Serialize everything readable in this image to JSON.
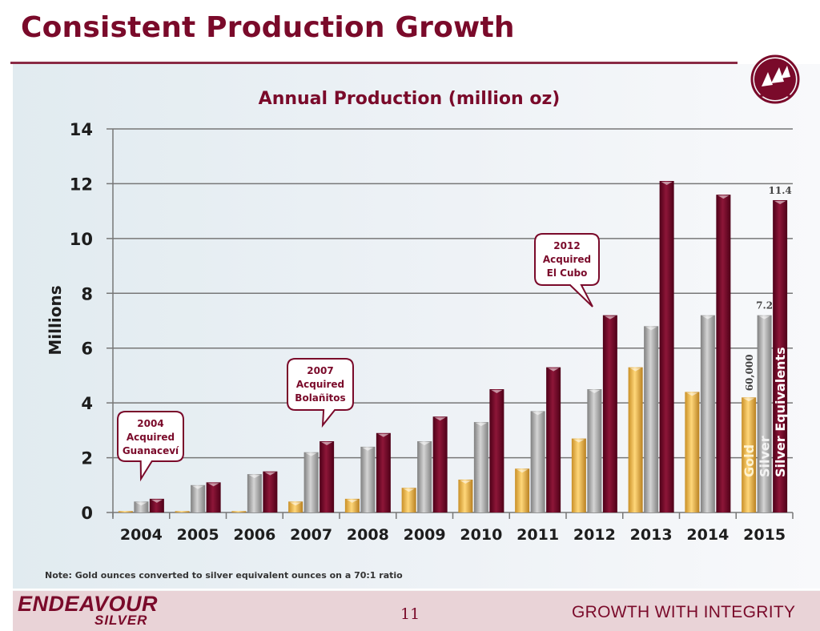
{
  "slide": {
    "title": "Consistent Production Growth",
    "note": "Note: Gold ounces converted to silver equivalent ounces on a 70:1 ratio",
    "page_number": "11",
    "brand_line1": "ENDEAVOUR",
    "brand_line2": "SILVER",
    "tagline": "GROWTH WITH INTEGRITY",
    "logo_icon": "sailing-ships-logo-icon"
  },
  "colors": {
    "brand": "#7a0a2a",
    "gold": "#f2b94a",
    "silver": "#a8a8a8",
    "silver_equivalents": "#7d0a2c",
    "grid": "#777777"
  },
  "chart_data": {
    "type": "bar",
    "title": "Annual Production (million oz)",
    "xlabel": "",
    "ylabel": "Millions",
    "ylim": [
      0,
      14
    ],
    "yticks": [
      0,
      2,
      4,
      6,
      8,
      10,
      12,
      14
    ],
    "grid": true,
    "categories": [
      "2004",
      "2005",
      "2006",
      "2007",
      "2008",
      "2009",
      "2010",
      "2011",
      "2012",
      "2013",
      "2014",
      "2015"
    ],
    "series": [
      {
        "name": "Gold",
        "values": [
          0.05,
          0.05,
          0.05,
          0.4,
          0.5,
          0.9,
          1.2,
          1.6,
          2.7,
          5.3,
          4.4,
          4.2
        ]
      },
      {
        "name": "Silver",
        "values": [
          0.4,
          1.0,
          1.4,
          2.2,
          2.4,
          2.6,
          3.3,
          3.7,
          4.5,
          6.8,
          7.2,
          7.2
        ]
      },
      {
        "name": "Silver Equivalents",
        "values": [
          0.5,
          1.1,
          1.5,
          2.6,
          2.9,
          3.5,
          4.5,
          5.3,
          7.2,
          12.1,
          11.6,
          11.4
        ]
      }
    ],
    "legend": "inline on 2015 bars (rotated labels)",
    "data_labels": [
      {
        "category": "2015",
        "series": "Silver Equivalents",
        "text": "11.4"
      },
      {
        "category": "2015",
        "series": "Silver",
        "text": "7.2"
      },
      {
        "category": "2015",
        "series": "Gold",
        "text": "60,000",
        "rotated": true
      }
    ],
    "annotations": [
      {
        "category": "2004",
        "lines": [
          "2004",
          "Acquired",
          "Guanaceví"
        ]
      },
      {
        "category": "2007",
        "lines": [
          "2007",
          "Acquired",
          "Bolañitos"
        ]
      },
      {
        "category": "2012",
        "lines": [
          "2012",
          "Acquired",
          "El Cubo"
        ]
      }
    ]
  }
}
